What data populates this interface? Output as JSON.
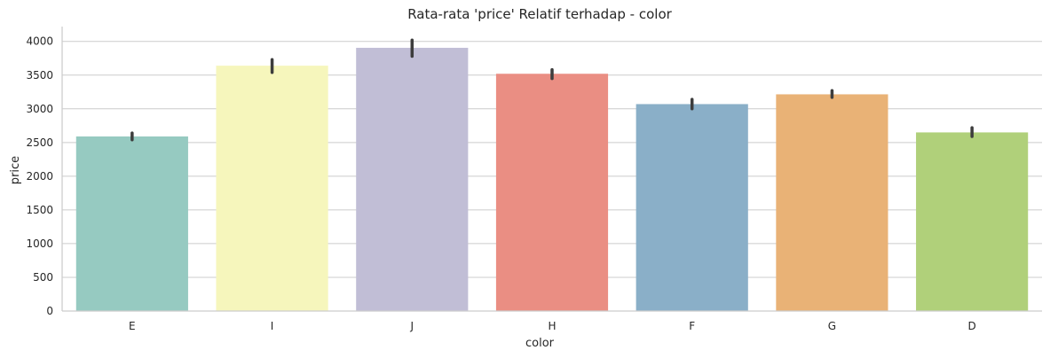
{
  "chart_data": {
    "type": "bar",
    "title": "Rata-rata 'price' Relatif terhadap - color",
    "xlabel": "color",
    "ylabel": "price",
    "categories": [
      "E",
      "I",
      "J",
      "H",
      "F",
      "G",
      "D"
    ],
    "values": [
      2590,
      3640,
      3905,
      3520,
      3070,
      3215,
      2650
    ],
    "error_bars": [
      [
        2540,
        2640
      ],
      [
        3540,
        3730
      ],
      [
        3780,
        4020
      ],
      [
        3450,
        3580
      ],
      [
        3000,
        3140
      ],
      [
        3170,
        3270
      ],
      [
        2590,
        2720
      ]
    ],
    "colors": [
      "#96cac1",
      "#f6f6bc",
      "#c1bed6",
      "#ea8e83",
      "#8aafc8",
      "#e9b276",
      "#b0d07a"
    ],
    "ylim": [
      0,
      4220
    ],
    "yticks": [
      0,
      500,
      1000,
      1500,
      2000,
      2500,
      3000,
      3500,
      4000
    ],
    "grid": true,
    "legend": "none"
  }
}
